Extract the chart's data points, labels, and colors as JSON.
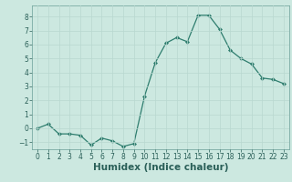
{
  "xlabel": "Humidex (Indice chaleur)",
  "x": [
    0,
    1,
    2,
    3,
    4,
    5,
    6,
    7,
    8,
    9,
    10,
    11,
    12,
    13,
    14,
    15,
    16,
    17,
    18,
    19,
    20,
    21,
    22,
    23
  ],
  "y": [
    0,
    0.3,
    -0.4,
    -0.4,
    -0.5,
    -1.2,
    -0.7,
    -0.9,
    -1.3,
    -1.1,
    2.3,
    4.7,
    6.1,
    6.5,
    6.2,
    8.1,
    8.1,
    7.1,
    5.6,
    5.0,
    4.6,
    3.6,
    3.5,
    3.2
  ],
  "line_color": "#2e7d6e",
  "marker": "D",
  "marker_size": 2.2,
  "bg_color": "#cce8e0",
  "grid_color": "#b8d8d0",
  "ylim": [
    -1.5,
    8.8
  ],
  "xlim": [
    -0.5,
    23.5
  ],
  "yticks": [
    -1,
    0,
    1,
    2,
    3,
    4,
    5,
    6,
    7,
    8
  ],
  "xticks": [
    0,
    1,
    2,
    3,
    4,
    5,
    6,
    7,
    8,
    9,
    10,
    11,
    12,
    13,
    14,
    15,
    16,
    17,
    18,
    19,
    20,
    21,
    22,
    23
  ],
  "tick_label_fontsize": 5.5,
  "xlabel_fontsize": 7.5,
  "axis_label_color": "#2a5f58",
  "spine_color": "#7aaba4"
}
